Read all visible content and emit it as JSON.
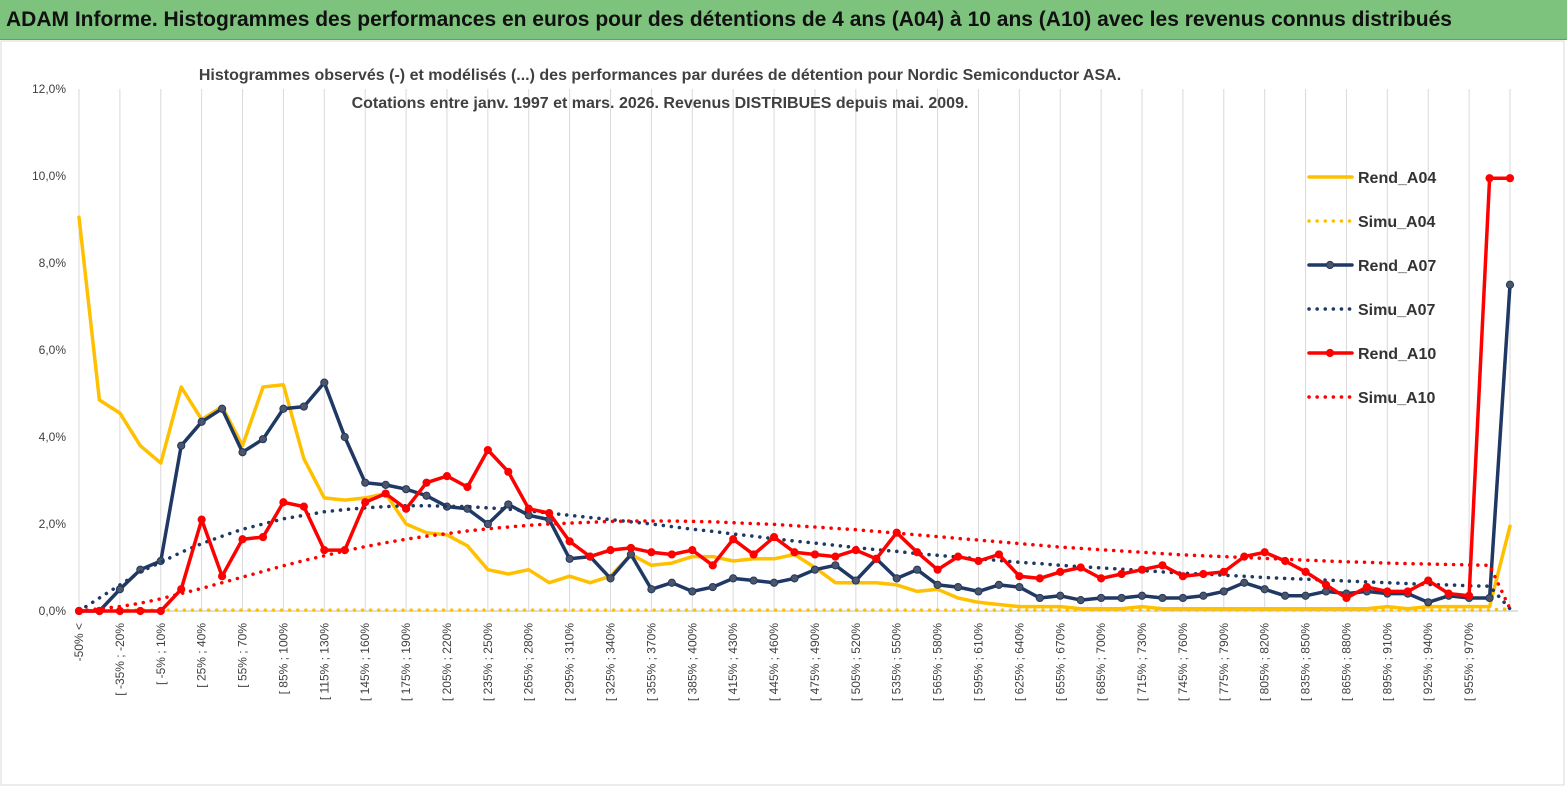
{
  "banner": {
    "title": "ADAM Informe. Histogrammes des performances en euros pour des détentions de 4 ans (A04) à 10 ans (A10) avec les revenus connus distribués"
  },
  "colors": {
    "banner_bg": "#7dc37d",
    "A04": "#ffc000",
    "A07": "#1f3864",
    "A10": "#ff0000",
    "grid": "#d9d9d9"
  },
  "chart_data": {
    "type": "line",
    "title_lines": [
      "Histogrammes observés (-) et modélisés (...) des performances par durées de détention pour Nordic Semiconductor ASA.",
      "Cotations entre janv. 1997 et mars. 2026. Revenus DISTRIBUES depuis mai. 2009."
    ],
    "xlabel": "",
    "ylabel": "",
    "ylim": [
      0,
      12
    ],
    "y_ticks": [
      "0,0%",
      "2,0%",
      "4,0%",
      "6,0%",
      "8,0%",
      "10,0%",
      "12,0%"
    ],
    "grid": "vertical",
    "legend_position": "right",
    "x_tick_labels": [
      "-50% <",
      "[ -35% ; -20%",
      "[ -5% ; 10%",
      "[ 25% ; 40%",
      "[ 55% ; 70%",
      "[ 85% ; 100%",
      "[ 115% ; 130%",
      "[ 145% ; 160%",
      "[ 175% ; 190%",
      "[ 205% ; 220%",
      "[ 235% ; 250%",
      "[ 265% ; 280%",
      "[ 295% ; 310%",
      "[ 325% ; 340%",
      "[ 355% ; 370%",
      "[ 385% ; 400%",
      "[ 415% ; 430%",
      "[ 445% ; 460%",
      "[ 475% ; 490%",
      "[ 505% ; 520%",
      "[ 535% ; 550%",
      "[ 565% ; 580%",
      "[ 595% ; 610%",
      "[ 625% ; 640%",
      "[ 655% ; 670%",
      "[ 685% ; 700%",
      "[ 715% ; 730%",
      "[ 745% ; 760%",
      "[ 775% ; 790%",
      "[ 805% ; 820%",
      "[ 835% ; 850%",
      "[ 865% ; 880%",
      "[ 895% ; 910%",
      "[ 925% ; 940%",
      "[ 955% ; 970%"
    ],
    "series": [
      {
        "name": "Rend_A04",
        "style": "solid",
        "markers": false,
        "color": "#ffc000",
        "values": [
          9.05,
          4.85,
          4.55,
          3.8,
          3.4,
          5.15,
          4.4,
          4.7,
          3.8,
          5.15,
          5.2,
          3.5,
          2.6,
          2.55,
          2.6,
          2.7,
          2.0,
          1.8,
          1.75,
          1.5,
          0.95,
          0.85,
          0.95,
          0.65,
          0.8,
          0.65,
          0.8,
          1.3,
          1.05,
          1.1,
          1.25,
          1.25,
          1.15,
          1.2,
          1.2,
          1.3,
          1.0,
          0.65,
          0.65,
          0.65,
          0.6,
          0.45,
          0.5,
          0.3,
          0.2,
          0.15,
          0.1,
          0.1,
          0.1,
          0.05,
          0.05,
          0.05,
          0.1,
          0.05,
          0.05,
          0.05,
          0.05,
          0.05,
          0.05,
          0.05,
          0.05,
          0.05,
          0.05,
          0.05,
          0.1,
          0.05,
          0.1,
          0.1,
          0.1,
          0.1,
          1.95
        ]
      },
      {
        "name": "Simu_A04",
        "style": "dotted",
        "markers": false,
        "color": "#ffc000",
        "values": [
          0.0,
          0.02,
          0.02,
          0.02,
          0.02,
          0.02,
          0.02,
          0.02,
          0.02,
          0.02,
          0.02,
          0.02,
          0.02,
          0.02,
          0.02,
          0.02,
          0.02,
          0.02,
          0.02,
          0.02,
          0.02,
          0.02,
          0.02,
          0.02,
          0.02,
          0.02,
          0.02,
          0.02,
          0.02,
          0.02,
          0.02,
          0.02,
          0.02,
          0.02,
          0.02,
          0.02,
          0.02,
          0.02,
          0.02,
          0.02,
          0.02,
          0.02,
          0.02,
          0.02,
          0.02,
          0.02,
          0.02,
          0.02,
          0.02,
          0.02,
          0.02,
          0.02,
          0.02,
          0.02,
          0.02,
          0.02,
          0.02,
          0.02,
          0.02,
          0.02,
          0.02,
          0.02,
          0.02,
          0.02,
          0.02,
          0.02,
          0.02,
          0.02,
          0.02,
          0.02,
          0.05
        ]
      },
      {
        "name": "Rend_A07",
        "style": "solid",
        "markers": true,
        "color": "#1f3864",
        "values": [
          0.0,
          0.0,
          0.5,
          0.95,
          1.15,
          3.8,
          4.35,
          4.65,
          3.65,
          3.95,
          4.65,
          4.7,
          5.25,
          4.0,
          2.95,
          2.9,
          2.8,
          2.65,
          2.4,
          2.35,
          2.0,
          2.45,
          2.2,
          2.1,
          1.2,
          1.25,
          0.75,
          1.3,
          0.5,
          0.65,
          0.45,
          0.55,
          0.75,
          0.7,
          0.65,
          0.75,
          0.95,
          1.05,
          0.7,
          1.2,
          0.75,
          0.95,
          0.6,
          0.55,
          0.45,
          0.6,
          0.55,
          0.3,
          0.35,
          0.25,
          0.3,
          0.3,
          0.35,
          0.3,
          0.3,
          0.35,
          0.45,
          0.65,
          0.5,
          0.35,
          0.35,
          0.45,
          0.4,
          0.45,
          0.4,
          0.4,
          0.2,
          0.35,
          0.3,
          0.3,
          7.5
        ]
      },
      {
        "name": "Simu_A07",
        "style": "dotted",
        "markers": false,
        "color": "#1f3864",
        "values": [
          0.0,
          0.3,
          0.6,
          0.9,
          1.12,
          1.35,
          1.55,
          1.72,
          1.88,
          2.0,
          2.12,
          2.2,
          2.28,
          2.33,
          2.37,
          2.4,
          2.42,
          2.42,
          2.41,
          2.4,
          2.37,
          2.34,
          2.3,
          2.25,
          2.2,
          2.15,
          2.1,
          2.05,
          2.0,
          1.94,
          1.88,
          1.83,
          1.77,
          1.72,
          1.66,
          1.61,
          1.56,
          1.51,
          1.46,
          1.41,
          1.37,
          1.32,
          1.28,
          1.24,
          1.2,
          1.16,
          1.12,
          1.09,
          1.05,
          1.02,
          0.99,
          0.96,
          0.93,
          0.9,
          0.87,
          0.85,
          0.82,
          0.8,
          0.77,
          0.75,
          0.73,
          0.71,
          0.69,
          0.67,
          0.65,
          0.63,
          0.61,
          0.6,
          0.58,
          0.57,
          0.05
        ]
      },
      {
        "name": "Rend_A10",
        "style": "solid",
        "markers": true,
        "color": "#ff0000",
        "values": [
          0.0,
          0.0,
          0.0,
          0.0,
          0.0,
          0.5,
          2.1,
          0.8,
          1.65,
          1.7,
          2.5,
          2.4,
          1.4,
          1.4,
          2.5,
          2.7,
          2.35,
          2.95,
          3.1,
          2.85,
          3.7,
          3.2,
          2.35,
          2.25,
          1.6,
          1.25,
          1.4,
          1.45,
          1.35,
          1.3,
          1.4,
          1.05,
          1.65,
          1.3,
          1.7,
          1.35,
          1.3,
          1.25,
          1.4,
          1.2,
          1.8,
          1.35,
          0.95,
          1.25,
          1.15,
          1.3,
          0.8,
          0.75,
          0.9,
          1.0,
          0.75,
          0.85,
          0.95,
          1.05,
          0.8,
          0.85,
          0.9,
          1.25,
          1.35,
          1.15,
          0.9,
          0.6,
          0.3,
          0.55,
          0.45,
          0.45,
          0.7,
          0.4,
          0.35,
          9.95,
          9.95
        ]
      },
      {
        "name": "Simu_A10",
        "style": "dotted",
        "markers": false,
        "color": "#ff0000",
        "values": [
          0.0,
          0.05,
          0.1,
          0.18,
          0.28,
          0.4,
          0.52,
          0.65,
          0.78,
          0.91,
          1.04,
          1.16,
          1.27,
          1.38,
          1.48,
          1.57,
          1.65,
          1.72,
          1.78,
          1.84,
          1.89,
          1.93,
          1.97,
          2.0,
          2.02,
          2.04,
          2.06,
          2.07,
          2.07,
          2.07,
          2.06,
          2.05,
          2.03,
          2.01,
          1.99,
          1.96,
          1.93,
          1.9,
          1.87,
          1.83,
          1.79,
          1.75,
          1.71,
          1.67,
          1.63,
          1.59,
          1.55,
          1.51,
          1.47,
          1.44,
          1.41,
          1.38,
          1.35,
          1.32,
          1.29,
          1.27,
          1.25,
          1.23,
          1.21,
          1.19,
          1.17,
          1.15,
          1.13,
          1.12,
          1.1,
          1.09,
          1.08,
          1.07,
          1.06,
          1.05,
          0.05
        ]
      }
    ]
  }
}
